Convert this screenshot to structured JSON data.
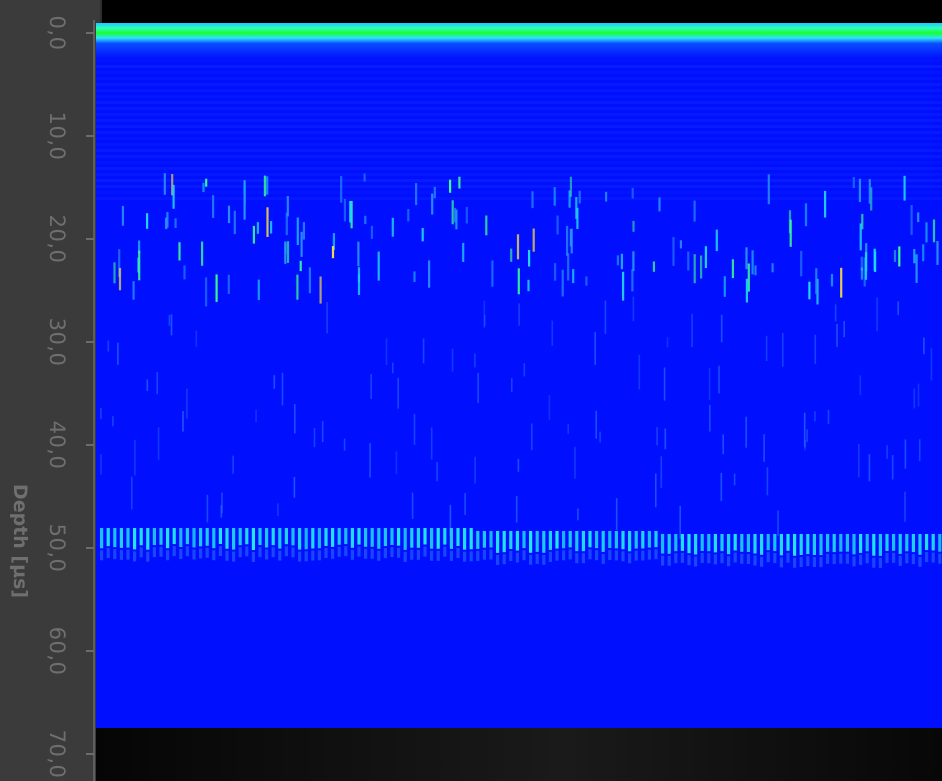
{
  "depth_axis": {
    "title": "Depth [µs]",
    "ticks": [
      {
        "label": "0,0",
        "value": 0
      },
      {
        "label": "10,0",
        "value": 10
      },
      {
        "label": "20,0",
        "value": 20
      },
      {
        "label": "30,0",
        "value": 30
      },
      {
        "label": "40,0",
        "value": 40
      },
      {
        "label": "50,0",
        "value": 50
      },
      {
        "label": "60,0",
        "value": 60
      },
      {
        "label": "70,0",
        "value": 70
      }
    ]
  },
  "scan_view": {
    "colormap": "jet",
    "colors": {
      "background": "#0010ff",
      "surface_echo": "#18ff30",
      "backwall_echo": "#20e8ff",
      "panel": "#3b3b3b",
      "axis_text": "#6f6f6f"
    },
    "depth_range": [
      0,
      70
    ]
  }
}
